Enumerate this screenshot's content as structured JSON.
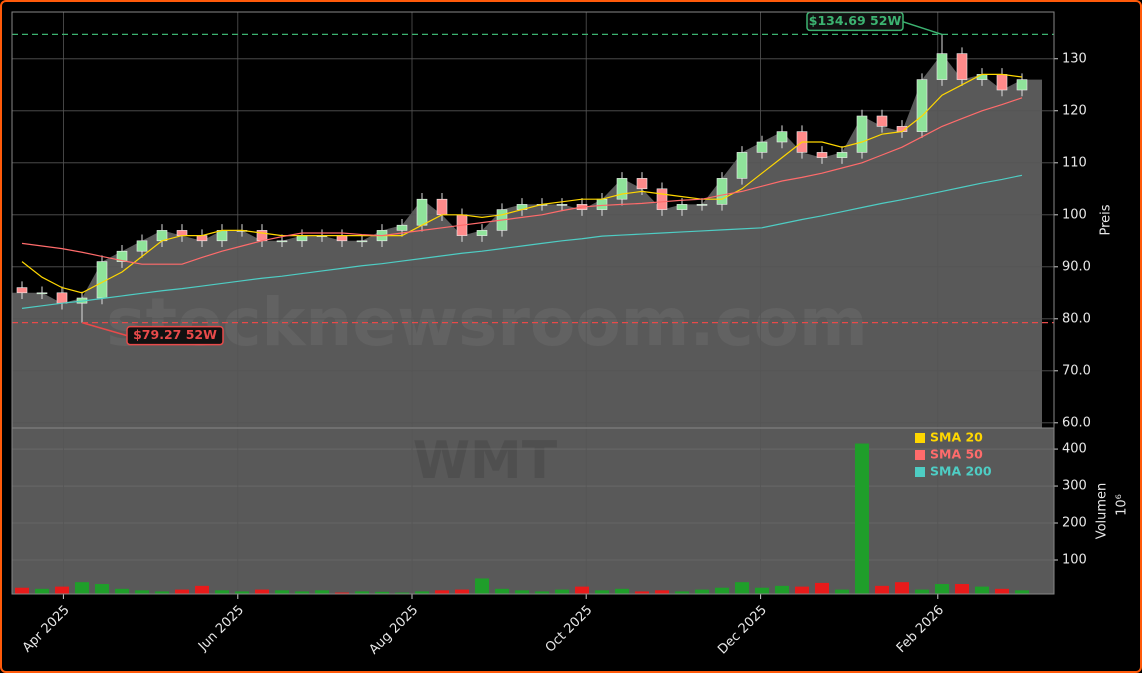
{
  "chart_data": [
    {
      "type": "candlestick",
      "watermark": "stocknewsroom.com",
      "ylabel": "Preis",
      "ylim": [
        59,
        139
      ],
      "yticks": [
        {
          "value": 60,
          "label": "60.0"
        },
        {
          "value": 70,
          "label": "70.0"
        },
        {
          "value": 80,
          "label": "80.0"
        },
        {
          "value": 90,
          "label": "90.0"
        },
        100,
        110,
        120,
        130
      ],
      "xlim": [
        -0.5,
        51.6
      ],
      "up_color": "#8fe39a",
      "down_color": "#ff8a8a",
      "area_color": "#595959",
      "open": [
        86,
        85,
        85,
        83,
        84,
        91,
        93,
        95,
        97,
        96,
        95,
        97,
        97,
        95,
        95,
        96,
        96,
        95,
        95,
        97,
        98,
        103,
        100,
        96,
        97,
        101,
        102,
        102,
        102,
        101,
        103,
        107,
        105,
        101,
        102,
        102,
        107,
        112,
        114,
        116,
        112,
        111,
        112,
        119,
        117,
        116,
        126,
        131,
        126,
        127,
        124
      ],
      "high": [
        87.2,
        86.2,
        86.2,
        85.2,
        92.2,
        94.2,
        96.2,
        98.2,
        98.2,
        97.2,
        98.2,
        98.2,
        98.2,
        96.2,
        97.2,
        97.2,
        97.2,
        96.2,
        98.2,
        99.2,
        104.2,
        104.2,
        101.2,
        98.2,
        102.2,
        103.2,
        103.2,
        103.2,
        103.2,
        104.2,
        108.2,
        108.2,
        106.2,
        103.2,
        103.2,
        108.2,
        113.2,
        115.2,
        117.2,
        117.2,
        113.2,
        113.2,
        120.2,
        120.2,
        118.2,
        127.2,
        134.69,
        132.2,
        128.2,
        128.2,
        127.2
      ],
      "low": [
        83.8,
        83.8,
        81.8,
        79.27,
        82.8,
        89.8,
        91.8,
        93.8,
        94.8,
        93.8,
        93.8,
        95.8,
        93.8,
        93.8,
        93.8,
        94.8,
        93.8,
        93.8,
        93.8,
        95.8,
        96.8,
        98.8,
        94.8,
        94.8,
        95.8,
        99.8,
        100.8,
        100.8,
        99.8,
        99.8,
        101.8,
        103.8,
        99.8,
        99.8,
        100.8,
        100.8,
        105.8,
        110.8,
        112.8,
        110.8,
        109.8,
        109.8,
        110.8,
        115.8,
        114.8,
        114.8,
        124.8,
        124.8,
        124.8,
        122.8,
        122.8
      ],
      "close": [
        85,
        85,
        83,
        84,
        91,
        93,
        95,
        97,
        96,
        95,
        97,
        97,
        95,
        95,
        96,
        96,
        95,
        95,
        97,
        98,
        103,
        100,
        96,
        97,
        101,
        102,
        102,
        102,
        101,
        103,
        107,
        105,
        101,
        102,
        102,
        107,
        112,
        114,
        116,
        112,
        111,
        112,
        119,
        117,
        116,
        126,
        131,
        126,
        127,
        124,
        126
      ],
      "series": [
        {
          "name": "SMA 20",
          "color": "#ffd700",
          "values": [
            91,
            88,
            86,
            85,
            87,
            89,
            92,
            95,
            96,
            96,
            97,
            97,
            96.5,
            96,
            96,
            96,
            96,
            96,
            96,
            96,
            98,
            100,
            100,
            99.5,
            100,
            101,
            102,
            102.5,
            103,
            103,
            104,
            104.5,
            104,
            103.5,
            103,
            103,
            105,
            108,
            111,
            114,
            114,
            113,
            114,
            115.5,
            116,
            119,
            123,
            125,
            127,
            127,
            126.5
          ]
        },
        {
          "name": "SMA 50",
          "color": "#ff6b6b",
          "values": [
            94.5,
            94,
            93.5,
            92.8,
            92,
            91.2,
            90.5,
            90.5,
            90.5,
            91.8,
            93,
            94,
            95,
            95.8,
            96.5,
            96.5,
            96.5,
            96.2,
            96,
            96.5,
            97,
            97.5,
            98,
            98.5,
            99,
            99.5,
            100,
            100.8,
            101.5,
            101.8,
            102,
            102.2,
            102.5,
            102.8,
            103,
            103.8,
            104.5,
            105.5,
            106.5,
            107.2,
            108,
            109,
            110,
            111.5,
            113,
            115,
            117,
            118.5,
            120,
            121.2,
            122.5
          ]
        },
        {
          "name": "SMA 200",
          "color": "#4ecdc4",
          "values": [
            82,
            82.5,
            83,
            83.4,
            83.9,
            84.4,
            84.9,
            85.4,
            85.8,
            86.3,
            86.8,
            87.3,
            87.8,
            88.2,
            88.7,
            89.2,
            89.7,
            90.2,
            90.6,
            91.1,
            91.6,
            92.1,
            92.6,
            93,
            93.5,
            94,
            94.5,
            95,
            95.4,
            95.9,
            96.1,
            96.3,
            96.5,
            96.7,
            96.9,
            97.1,
            97.3,
            97.5,
            98.3,
            99.1,
            99.8,
            100.6,
            101.4,
            102.2,
            102.9,
            103.7,
            104.5,
            105.3,
            106.1,
            106.8,
            107.6
          ]
        }
      ],
      "legend": "lower right",
      "annotations": [
        {
          "label": "$134.69 52W",
          "value": 134.69,
          "color": "#3cb371"
        },
        {
          "label": "$79.27 52W",
          "value": 79.27,
          "color": "#e84a4a"
        }
      ]
    },
    {
      "type": "bar",
      "watermark": "WMT",
      "ylabel": "Volumen",
      "yunit": "10⁶",
      "ylim": [
        8,
        457
      ],
      "yticks": [
        100,
        200,
        300,
        400
      ],
      "up_color": "#1f9e2a",
      "down_color": "#e81a1a",
      "values": [
        25,
        22,
        28,
        40,
        35,
        22,
        18,
        15,
        20,
        30,
        18,
        15,
        20,
        18,
        15,
        18,
        12,
        15,
        14,
        12,
        15,
        18,
        20,
        50,
        22,
        18,
        15,
        20,
        28,
        18,
        22,
        15,
        18,
        15,
        20,
        25,
        40,
        25,
        30,
        28,
        38,
        20,
        415,
        30,
        40,
        20,
        35,
        35,
        28,
        22,
        18
      ],
      "xticks": [
        {
          "value": 2.07,
          "label": "Apr 2025"
        },
        {
          "value": 10.79,
          "label": "Jun 2025"
        },
        {
          "value": 19.5,
          "label": "Aug 2025"
        },
        {
          "value": 28.21,
          "label": "Oct 2025"
        },
        {
          "value": 36.93,
          "label": "Dec 2025"
        },
        {
          "value": 45.79,
          "label": "Feb 2026"
        }
      ]
    }
  ]
}
